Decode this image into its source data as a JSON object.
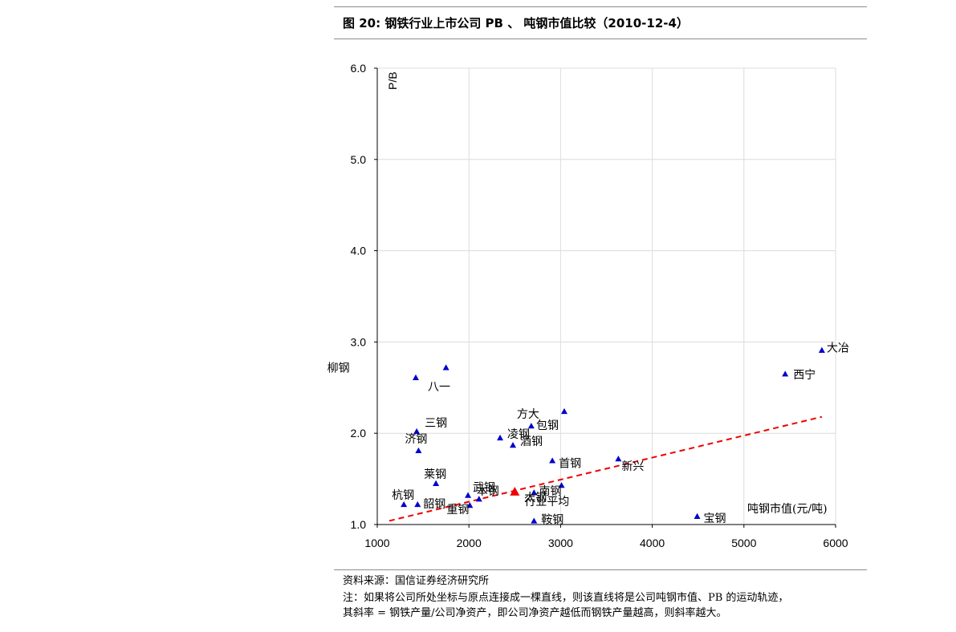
{
  "figure": {
    "title": "图 20:  钢铁行业上市公司 PB  、  吨钢市值比较（2010-12-4）",
    "source": "资料来源：国信证券经济研究所",
    "note_line1": "注：如果将公司所处坐标与原点连接成一棵直线，则该直线将是公司吨钢市值、PB 的运动轨迹，",
    "note_line2": "其斜率 = 钢铁产量/公司净资产，即公司净资产越低而钢铁产量越高，则斜率越大。"
  },
  "chart_data": {
    "type": "scatter",
    "title": "",
    "xlabel": "吨钢市值(元/吨)",
    "ylabel": "P/B",
    "xlim": [
      1000,
      6000
    ],
    "ylim": [
      1.0,
      6.0
    ],
    "xticks": [
      1000,
      2000,
      3000,
      4000,
      5000,
      6000
    ],
    "yticks": [
      1.0,
      2.0,
      3.0,
      4.0,
      5.0,
      6.0
    ],
    "ytick_labels": [
      "1.0",
      "2.0",
      "3.0",
      "4.0",
      "5.0",
      "6.0"
    ],
    "grid": true,
    "marker_color": "#0000cc",
    "highlight_color": "#ee0000",
    "trendline": {
      "x": [
        1130,
        5850
      ],
      "y": [
        1.04,
        2.18
      ],
      "color": "#ee0000",
      "style": "dashed"
    },
    "points": [
      {
        "label": "八一",
        "x": 1420,
        "y": 2.61
      },
      {
        "label": "柳钢",
        "x": 1750,
        "y": 2.72
      },
      {
        "label": "三钢",
        "x": 1430,
        "y": 2.02
      },
      {
        "label": "济钢",
        "x": 1450,
        "y": 1.81
      },
      {
        "label": "莱钢",
        "x": 1640,
        "y": 1.45
      },
      {
        "label": "杭钢",
        "x": 1290,
        "y": 1.22
      },
      {
        "label": "韶钢",
        "x": 1440,
        "y": 1.22
      },
      {
        "label": "重钢",
        "x": 2010,
        "y": 1.21
      },
      {
        "label": "武钢",
        "x": 1990,
        "y": 1.32
      },
      {
        "label": "本钢",
        "x": 2110,
        "y": 1.28
      },
      {
        "label": "凌钢",
        "x": 2340,
        "y": 1.95
      },
      {
        "label": "酒钢",
        "x": 2480,
        "y": 1.87
      },
      {
        "label": "方大",
        "x": 2680,
        "y": 2.08
      },
      {
        "label": "包钢",
        "x": 3040,
        "y": 2.24
      },
      {
        "label": "首钢",
        "x": 2910,
        "y": 1.7
      },
      {
        "label": "南钢",
        "x": 3010,
        "y": 1.43
      },
      {
        "label": "太钢",
        "x": 2710,
        "y": 1.35
      },
      {
        "label": "鞍钢",
        "x": 2710,
        "y": 1.04
      },
      {
        "label": "新兴",
        "x": 3630,
        "y": 1.72
      },
      {
        "label": "宝钢",
        "x": 4490,
        "y": 1.09
      },
      {
        "label": "西宁",
        "x": 5450,
        "y": 2.65
      },
      {
        "label": "大冶",
        "x": 5850,
        "y": 2.91
      },
      {
        "label": "行业平均",
        "x": 2500,
        "y": 1.36,
        "highlight": true
      }
    ]
  }
}
